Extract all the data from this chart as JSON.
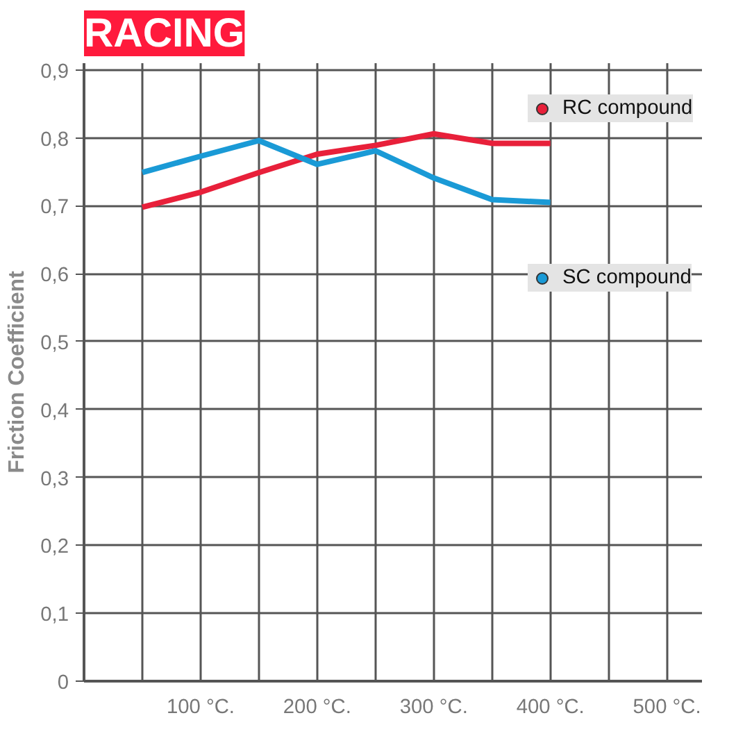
{
  "chart_data": {
    "type": "line",
    "title": "RACING",
    "ylabel": "Friction Coefficient",
    "x": [
      50,
      100,
      150,
      200,
      250,
      300,
      350,
      400
    ],
    "series": [
      {
        "name": "RC compound",
        "color": "#e8203a",
        "values": [
          0.698,
          0.72,
          0.749,
          0.776,
          0.789,
          0.806,
          0.792,
          0.792
        ]
      },
      {
        "name": "SC compound",
        "color": "#1a9ad6",
        "values": [
          0.749,
          0.773,
          0.796,
          0.761,
          0.781,
          0.741,
          0.709,
          0.705
        ]
      }
    ],
    "xlim": [
      0,
      530
    ],
    "xticks": [
      {
        "value": 50,
        "label": null
      },
      {
        "value": 100,
        "label": "100 °C."
      },
      {
        "value": 150,
        "label": null
      },
      {
        "value": 200,
        "label": "200 °C."
      },
      {
        "value": 250,
        "label": null
      },
      {
        "value": 300,
        "label": "300 °C."
      },
      {
        "value": 350,
        "label": null
      },
      {
        "value": 400,
        "label": "400 °C."
      },
      {
        "value": 450,
        "label": null
      },
      {
        "value": 500,
        "label": "500 °C."
      }
    ],
    "ylim": [
      0,
      0.91
    ],
    "yticks": [
      0,
      {
        "value": 0.1,
        "label": "0,1"
      },
      {
        "value": 0.2,
        "label": "0,2"
      },
      {
        "value": 0.3,
        "label": "0,3"
      },
      {
        "value": 0.4,
        "label": "0,4"
      },
      {
        "value": 0.5,
        "label": "0,5"
      },
      {
        "value": 0.6,
        "label": "0,6"
      },
      {
        "value": 0.7,
        "label": "0,7"
      },
      {
        "value": 0.8,
        "label": "0,8"
      },
      {
        "value": 0.9,
        "label": "0,9"
      }
    ],
    "grid": true,
    "legend": "right",
    "marker": "none",
    "line_style": "solid"
  }
}
